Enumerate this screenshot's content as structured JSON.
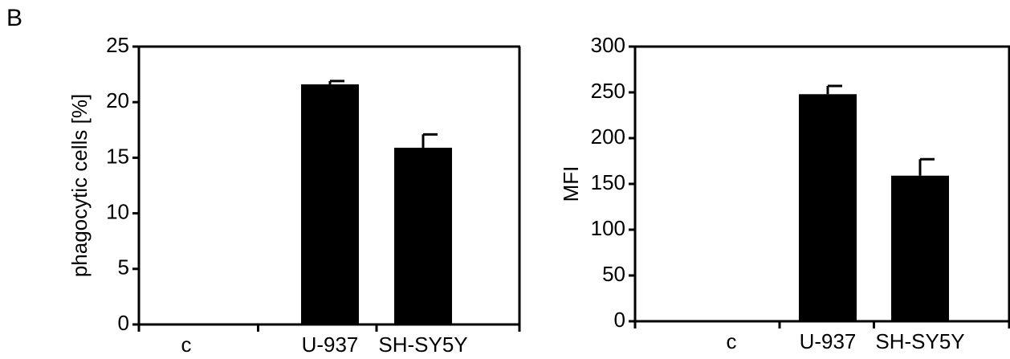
{
  "panel_label": "B",
  "chart_data": [
    {
      "type": "bar",
      "categories": [
        "c",
        "U-937",
        "SH-SY5Y"
      ],
      "values": [
        0,
        21.6,
        15.9
      ],
      "errors": [
        0,
        0.3,
        1.2
      ],
      "ylabel": "phagocytic cells [%]",
      "ylim": [
        0,
        25
      ],
      "yticks": [
        0,
        5,
        10,
        15,
        20,
        25
      ],
      "bar_color": "#000000",
      "grid": false
    },
    {
      "type": "bar",
      "categories": [
        "c",
        "U-937",
        "SH-SY5Y"
      ],
      "values": [
        0,
        248,
        159
      ],
      "errors": [
        0,
        9,
        18
      ],
      "ylabel": "MFI",
      "ylim": [
        0,
        300
      ],
      "yticks": [
        0,
        50,
        100,
        150,
        200,
        250,
        300
      ],
      "bar_color": "#000000",
      "grid": false
    }
  ]
}
